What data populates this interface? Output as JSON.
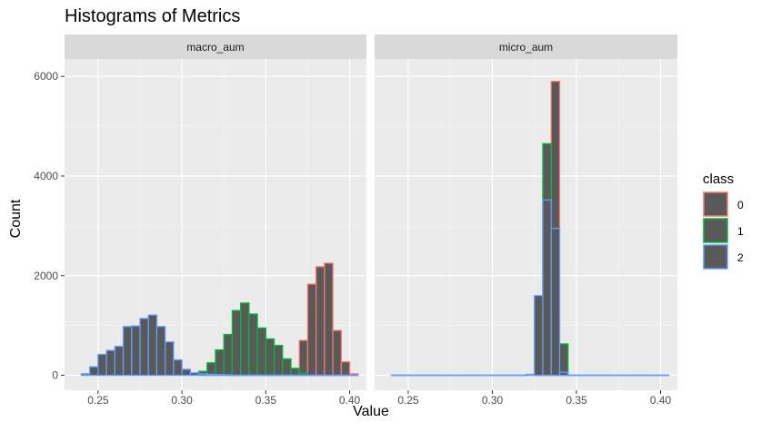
{
  "chart_data": {
    "type": "histogram",
    "title": "Histograms of Metrics",
    "xlabel": "Value",
    "ylabel": "Count",
    "xlim": [
      0.23,
      0.41
    ],
    "ylim": [
      -300,
      6350
    ],
    "x_ticks": [
      0.25,
      0.3,
      0.35,
      0.4
    ],
    "x_tick_labels": [
      "0.25",
      "0.30",
      "0.35",
      "0.40"
    ],
    "y_ticks": [
      0,
      2000,
      4000,
      6000
    ],
    "y_tick_labels": [
      "0",
      "2000",
      "4000",
      "6000"
    ],
    "bin_width": 0.005,
    "grid": true,
    "legend": {
      "title": "class",
      "position": "right",
      "entries": [
        {
          "label": "0",
          "color": "#F8766D"
        },
        {
          "label": "1",
          "color": "#00BA38"
        },
        {
          "label": "2",
          "color": "#619CFF"
        }
      ]
    },
    "panels": [
      {
        "name": "macro_aum",
        "series": [
          {
            "name": "0",
            "color": "#F8766D",
            "bins": [
              [
                0.37,
                0.375,
                700
              ],
              [
                0.375,
                0.38,
                1830
              ],
              [
                0.38,
                0.385,
                2180
              ],
              [
                0.385,
                0.39,
                2250
              ],
              [
                0.39,
                0.395,
                900
              ],
              [
                0.395,
                0.4,
                270
              ],
              [
                0.4,
                0.405,
                30
              ]
            ]
          },
          {
            "name": "1",
            "color": "#00BA38",
            "bins": [
              [
                0.31,
                0.315,
                80
              ],
              [
                0.315,
                0.32,
                250
              ],
              [
                0.32,
                0.325,
                510
              ],
              [
                0.325,
                0.33,
                820
              ],
              [
                0.33,
                0.335,
                1300
              ],
              [
                0.335,
                0.34,
                1450
              ],
              [
                0.34,
                0.345,
                1230
              ],
              [
                0.345,
                0.35,
                950
              ],
              [
                0.35,
                0.355,
                730
              ],
              [
                0.355,
                0.36,
                600
              ],
              [
                0.36,
                0.365,
                330
              ],
              [
                0.365,
                0.37,
                140
              ],
              [
                0.37,
                0.375,
                40
              ]
            ]
          },
          {
            "name": "2",
            "color": "#619CFF",
            "bins": [
              [
                0.24,
                0.245,
                30
              ],
              [
                0.245,
                0.25,
                170
              ],
              [
                0.25,
                0.255,
                420
              ],
              [
                0.255,
                0.26,
                500
              ],
              [
                0.26,
                0.265,
                580
              ],
              [
                0.265,
                0.27,
                980
              ],
              [
                0.27,
                0.275,
                990
              ],
              [
                0.275,
                0.28,
                1140
              ],
              [
                0.28,
                0.285,
                1210
              ],
              [
                0.285,
                0.29,
                980
              ],
              [
                0.29,
                0.295,
                670
              ],
              [
                0.295,
                0.3,
                310
              ],
              [
                0.3,
                0.305,
                120
              ],
              [
                0.305,
                0.31,
                50
              ],
              [
                0.31,
                0.315,
                30
              ],
              [
                0.315,
                0.32,
                20
              ],
              [
                0.32,
                0.325,
                15
              ],
              [
                0.325,
                0.33,
                10
              ],
              [
                0.33,
                0.335,
                5
              ],
              [
                0.335,
                0.34,
                5
              ],
              [
                0.34,
                0.345,
                5
              ],
              [
                0.345,
                0.35,
                5
              ],
              [
                0.35,
                0.355,
                5
              ],
              [
                0.355,
                0.36,
                5
              ],
              [
                0.36,
                0.365,
                5
              ],
              [
                0.365,
                0.37,
                5
              ],
              [
                0.37,
                0.375,
                5
              ],
              [
                0.375,
                0.38,
                5
              ],
              [
                0.38,
                0.385,
                5
              ],
              [
                0.385,
                0.39,
                5
              ],
              [
                0.39,
                0.395,
                5
              ],
              [
                0.395,
                0.4,
                5
              ],
              [
                0.4,
                0.405,
                5
              ]
            ]
          }
        ]
      },
      {
        "name": "micro_aum",
        "series": [
          {
            "name": "0",
            "color": "#F8766D",
            "bins": [
              [
                0.325,
                0.33,
                30
              ],
              [
                0.33,
                0.335,
                60
              ],
              [
                0.335,
                0.34,
                5900
              ],
              [
                0.34,
                0.345,
                30
              ]
            ]
          },
          {
            "name": "1",
            "color": "#00BA38",
            "bins": [
              [
                0.325,
                0.33,
                40
              ],
              [
                0.33,
                0.335,
                4650
              ],
              [
                0.335,
                0.34,
                120
              ],
              [
                0.34,
                0.345,
                630
              ]
            ]
          },
          {
            "name": "2",
            "color": "#619CFF",
            "bins": [
              [
                0.24,
                0.245,
                5
              ],
              [
                0.245,
                0.25,
                5
              ],
              [
                0.25,
                0.255,
                5
              ],
              [
                0.255,
                0.26,
                5
              ],
              [
                0.26,
                0.265,
                5
              ],
              [
                0.265,
                0.27,
                5
              ],
              [
                0.27,
                0.275,
                5
              ],
              [
                0.275,
                0.28,
                5
              ],
              [
                0.28,
                0.285,
                5
              ],
              [
                0.285,
                0.29,
                5
              ],
              [
                0.29,
                0.295,
                5
              ],
              [
                0.295,
                0.3,
                5
              ],
              [
                0.3,
                0.305,
                5
              ],
              [
                0.305,
                0.31,
                5
              ],
              [
                0.31,
                0.315,
                5
              ],
              [
                0.315,
                0.32,
                5
              ],
              [
                0.32,
                0.325,
                20
              ],
              [
                0.325,
                0.33,
                1600
              ],
              [
                0.33,
                0.335,
                3520
              ],
              [
                0.335,
                0.34,
                2950
              ],
              [
                0.34,
                0.345,
                60
              ],
              [
                0.345,
                0.35,
                5
              ],
              [
                0.35,
                0.355,
                5
              ],
              [
                0.355,
                0.36,
                5
              ],
              [
                0.36,
                0.365,
                5
              ],
              [
                0.365,
                0.37,
                5
              ],
              [
                0.37,
                0.375,
                5
              ],
              [
                0.375,
                0.38,
                5
              ],
              [
                0.38,
                0.385,
                5
              ],
              [
                0.385,
                0.39,
                5
              ],
              [
                0.39,
                0.395,
                5
              ],
              [
                0.395,
                0.4,
                5
              ],
              [
                0.4,
                0.405,
                5
              ]
            ]
          }
        ]
      }
    ]
  }
}
